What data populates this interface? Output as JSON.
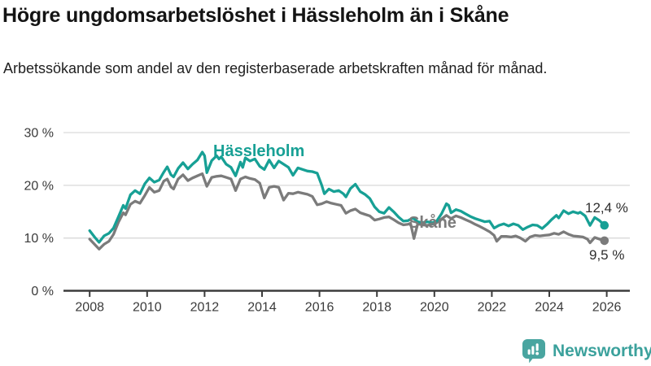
{
  "header": {
    "title": "Högre ungdomsarbetslöshet i Hässleholm än i Skåne",
    "subtitle": "Arbetssökande som andel av den registerbaserade arbetskraften månad för månad."
  },
  "chart_data": {
    "type": "line",
    "title": "Högre ungdomsarbetslöshet i Hässleholm än i Skåne",
    "subtitle": "Arbetssökande som andel av den registerbaserade arbetskraften månad för månad.",
    "grid": true,
    "legend_position": "inline-labels",
    "x_axis": {
      "ticks": [
        2008,
        2010,
        2012,
        2014,
        2016,
        2018,
        2020,
        2022,
        2024,
        2026
      ],
      "tick_labels": [
        "2008",
        "2010",
        "2012",
        "2014",
        "2016",
        "2018",
        "2020",
        "2022",
        "2024",
        "2026"
      ],
      "range": [
        2007.1,
        2026.8
      ]
    },
    "y_axis": {
      "ticks": [
        0,
        10,
        20,
        30
      ],
      "tick_labels": [
        "0 %",
        "10 %",
        "20 %",
        "30 %"
      ],
      "range": [
        0,
        30
      ],
      "unit": "%"
    },
    "series": [
      {
        "name": "Skåne",
        "color": "#7b7b7b",
        "end_value": 9.5,
        "end_label": "9,5 %",
        "points": [
          [
            2008.0,
            9.8
          ],
          [
            2008.17,
            8.8
          ],
          [
            2008.33,
            7.9
          ],
          [
            2008.5,
            8.8
          ],
          [
            2008.67,
            9.4
          ],
          [
            2008.83,
            10.7
          ],
          [
            2009.0,
            13.0
          ],
          [
            2009.17,
            14.8
          ],
          [
            2009.25,
            14.4
          ],
          [
            2009.42,
            16.4
          ],
          [
            2009.58,
            17.0
          ],
          [
            2009.75,
            16.6
          ],
          [
            2009.92,
            18.1
          ],
          [
            2010.08,
            19.6
          ],
          [
            2010.25,
            18.7
          ],
          [
            2010.42,
            19.0
          ],
          [
            2010.58,
            20.8
          ],
          [
            2010.7,
            21.2
          ],
          [
            2010.83,
            19.7
          ],
          [
            2010.92,
            19.3
          ],
          [
            2011.08,
            21.2
          ],
          [
            2011.25,
            22.0
          ],
          [
            2011.42,
            20.9
          ],
          [
            2011.58,
            21.4
          ],
          [
            2011.75,
            21.8
          ],
          [
            2011.92,
            22.2
          ],
          [
            2012.08,
            19.8
          ],
          [
            2012.25,
            21.5
          ],
          [
            2012.42,
            21.7
          ],
          [
            2012.58,
            21.8
          ],
          [
            2012.75,
            21.5
          ],
          [
            2012.92,
            21.2
          ],
          [
            2013.08,
            19.0
          ],
          [
            2013.25,
            21.2
          ],
          [
            2013.42,
            21.6
          ],
          [
            2013.58,
            21.3
          ],
          [
            2013.75,
            21.1
          ],
          [
            2013.92,
            20.4
          ],
          [
            2014.08,
            17.6
          ],
          [
            2014.25,
            19.6
          ],
          [
            2014.42,
            19.8
          ],
          [
            2014.58,
            19.6
          ],
          [
            2014.75,
            17.2
          ],
          [
            2014.92,
            18.5
          ],
          [
            2015.08,
            18.4
          ],
          [
            2015.25,
            18.7
          ],
          [
            2015.42,
            18.5
          ],
          [
            2015.58,
            18.3
          ],
          [
            2015.75,
            17.9
          ],
          [
            2015.92,
            16.3
          ],
          [
            2016.08,
            16.5
          ],
          [
            2016.25,
            16.9
          ],
          [
            2016.42,
            16.6
          ],
          [
            2016.58,
            16.4
          ],
          [
            2016.75,
            16.2
          ],
          [
            2016.92,
            14.7
          ],
          [
            2017.08,
            15.2
          ],
          [
            2017.25,
            15.5
          ],
          [
            2017.42,
            14.8
          ],
          [
            2017.58,
            14.5
          ],
          [
            2017.75,
            14.2
          ],
          [
            2017.92,
            13.4
          ],
          [
            2018.08,
            13.6
          ],
          [
            2018.25,
            13.9
          ],
          [
            2018.42,
            14.0
          ],
          [
            2018.58,
            13.5
          ],
          [
            2018.75,
            12.9
          ],
          [
            2018.92,
            12.5
          ],
          [
            2019.08,
            12.6
          ],
          [
            2019.17,
            12.8
          ],
          [
            2019.29,
            9.9
          ],
          [
            2019.42,
            12.7
          ],
          [
            2019.58,
            12.5
          ],
          [
            2019.75,
            12.4
          ],
          [
            2019.92,
            12.6
          ],
          [
            2020.08,
            12.9
          ],
          [
            2020.25,
            13.6
          ],
          [
            2020.42,
            14.3
          ],
          [
            2020.58,
            13.7
          ],
          [
            2020.75,
            14.2
          ],
          [
            2020.92,
            13.9
          ],
          [
            2021.08,
            13.5
          ],
          [
            2021.25,
            13.1
          ],
          [
            2021.42,
            12.6
          ],
          [
            2021.58,
            12.2
          ],
          [
            2021.75,
            11.7
          ],
          [
            2021.92,
            11.2
          ],
          [
            2022.08,
            10.5
          ],
          [
            2022.17,
            9.4
          ],
          [
            2022.33,
            10.3
          ],
          [
            2022.5,
            10.3
          ],
          [
            2022.67,
            10.2
          ],
          [
            2022.83,
            10.4
          ],
          [
            2023.0,
            10.0
          ],
          [
            2023.17,
            9.4
          ],
          [
            2023.33,
            10.2
          ],
          [
            2023.5,
            10.5
          ],
          [
            2023.67,
            10.4
          ],
          [
            2023.83,
            10.5
          ],
          [
            2024.0,
            10.6
          ],
          [
            2024.17,
            10.9
          ],
          [
            2024.33,
            10.7
          ],
          [
            2024.5,
            11.2
          ],
          [
            2024.67,
            10.7
          ],
          [
            2024.83,
            10.4
          ],
          [
            2025.0,
            10.3
          ],
          [
            2025.17,
            10.2
          ],
          [
            2025.33,
            9.8
          ],
          [
            2025.42,
            9.1
          ],
          [
            2025.58,
            10.1
          ],
          [
            2025.75,
            9.8
          ],
          [
            2025.92,
            9.5
          ]
        ]
      },
      {
        "name": "Hässleholm",
        "color": "#17a095",
        "end_value": 12.4,
        "end_label": "12,4 %",
        "points": [
          [
            2008.0,
            11.4
          ],
          [
            2008.17,
            10.2
          ],
          [
            2008.33,
            9.2
          ],
          [
            2008.5,
            10.4
          ],
          [
            2008.67,
            10.9
          ],
          [
            2008.83,
            11.9
          ],
          [
            2009.0,
            14.0
          ],
          [
            2009.17,
            16.2
          ],
          [
            2009.25,
            15.6
          ],
          [
            2009.42,
            18.2
          ],
          [
            2009.58,
            19.0
          ],
          [
            2009.75,
            18.4
          ],
          [
            2009.92,
            20.3
          ],
          [
            2010.08,
            21.4
          ],
          [
            2010.25,
            20.6
          ],
          [
            2010.42,
            21.0
          ],
          [
            2010.58,
            22.5
          ],
          [
            2010.7,
            23.5
          ],
          [
            2010.83,
            22.0
          ],
          [
            2010.92,
            21.6
          ],
          [
            2011.08,
            23.2
          ],
          [
            2011.25,
            24.3
          ],
          [
            2011.42,
            23.1
          ],
          [
            2011.58,
            24.0
          ],
          [
            2011.75,
            24.8
          ],
          [
            2011.92,
            26.3
          ],
          [
            2012.0,
            25.6
          ],
          [
            2012.08,
            22.4
          ],
          [
            2012.25,
            24.7
          ],
          [
            2012.42,
            25.6
          ],
          [
            2012.5,
            25.0
          ],
          [
            2012.58,
            25.4
          ],
          [
            2012.75,
            24.0
          ],
          [
            2012.92,
            23.4
          ],
          [
            2013.08,
            21.8
          ],
          [
            2013.25,
            24.4
          ],
          [
            2013.33,
            23.4
          ],
          [
            2013.42,
            25.2
          ],
          [
            2013.58,
            24.6
          ],
          [
            2013.75,
            25.0
          ],
          [
            2013.92,
            23.6
          ],
          [
            2014.08,
            23.0
          ],
          [
            2014.25,
            24.8
          ],
          [
            2014.42,
            23.3
          ],
          [
            2014.58,
            24.6
          ],
          [
            2014.75,
            24.0
          ],
          [
            2014.92,
            23.4
          ],
          [
            2015.08,
            21.9
          ],
          [
            2015.25,
            23.3
          ],
          [
            2015.42,
            23.0
          ],
          [
            2015.58,
            22.7
          ],
          [
            2015.75,
            22.6
          ],
          [
            2015.92,
            22.3
          ],
          [
            2016.08,
            20.0
          ],
          [
            2016.17,
            18.4
          ],
          [
            2016.33,
            19.3
          ],
          [
            2016.5,
            18.8
          ],
          [
            2016.67,
            19.0
          ],
          [
            2016.83,
            18.4
          ],
          [
            2016.92,
            17.8
          ],
          [
            2017.08,
            19.4
          ],
          [
            2017.25,
            20.2
          ],
          [
            2017.42,
            18.8
          ],
          [
            2017.58,
            18.3
          ],
          [
            2017.75,
            17.5
          ],
          [
            2017.92,
            15.9
          ],
          [
            2018.08,
            15.0
          ],
          [
            2018.25,
            14.7
          ],
          [
            2018.42,
            15.8
          ],
          [
            2018.58,
            15.0
          ],
          [
            2018.75,
            14.0
          ],
          [
            2018.92,
            13.2
          ],
          [
            2019.08,
            13.3
          ],
          [
            2019.25,
            13.8
          ],
          [
            2019.42,
            13.1
          ],
          [
            2019.58,
            12.9
          ],
          [
            2019.75,
            13.1
          ],
          [
            2019.92,
            12.9
          ],
          [
            2020.08,
            13.2
          ],
          [
            2020.25,
            14.6
          ],
          [
            2020.42,
            16.5
          ],
          [
            2020.5,
            16.2
          ],
          [
            2020.58,
            14.8
          ],
          [
            2020.75,
            15.4
          ],
          [
            2020.92,
            15.1
          ],
          [
            2021.08,
            14.6
          ],
          [
            2021.25,
            14.1
          ],
          [
            2021.42,
            13.7
          ],
          [
            2021.58,
            13.4
          ],
          [
            2021.75,
            13.1
          ],
          [
            2021.92,
            13.2
          ],
          [
            2022.08,
            11.9
          ],
          [
            2022.25,
            12.4
          ],
          [
            2022.42,
            12.7
          ],
          [
            2022.58,
            12.3
          ],
          [
            2022.75,
            12.7
          ],
          [
            2022.92,
            12.4
          ],
          [
            2023.08,
            11.6
          ],
          [
            2023.25,
            12.1
          ],
          [
            2023.42,
            12.5
          ],
          [
            2023.58,
            12.4
          ],
          [
            2023.75,
            11.8
          ],
          [
            2023.92,
            12.6
          ],
          [
            2024.08,
            13.5
          ],
          [
            2024.25,
            14.3
          ],
          [
            2024.33,
            13.8
          ],
          [
            2024.5,
            15.2
          ],
          [
            2024.67,
            14.6
          ],
          [
            2024.83,
            15.0
          ],
          [
            2025.0,
            14.7
          ],
          [
            2025.08,
            14.9
          ],
          [
            2025.25,
            14.2
          ],
          [
            2025.42,
            12.4
          ],
          [
            2025.58,
            13.9
          ],
          [
            2025.75,
            13.3
          ],
          [
            2025.92,
            12.4
          ]
        ]
      }
    ]
  },
  "colors": {
    "hassleholm_teal": "#17a095",
    "skane_gray": "#7b7b7b",
    "grid": "#d9d9d9",
    "axis": "#3c3c3c",
    "tick_text": "#3a3a3a",
    "logo_teal": "#49a5a0",
    "logo_text_teal": "#3ba19c"
  },
  "footer": {
    "brand": "Newsworthy"
  }
}
